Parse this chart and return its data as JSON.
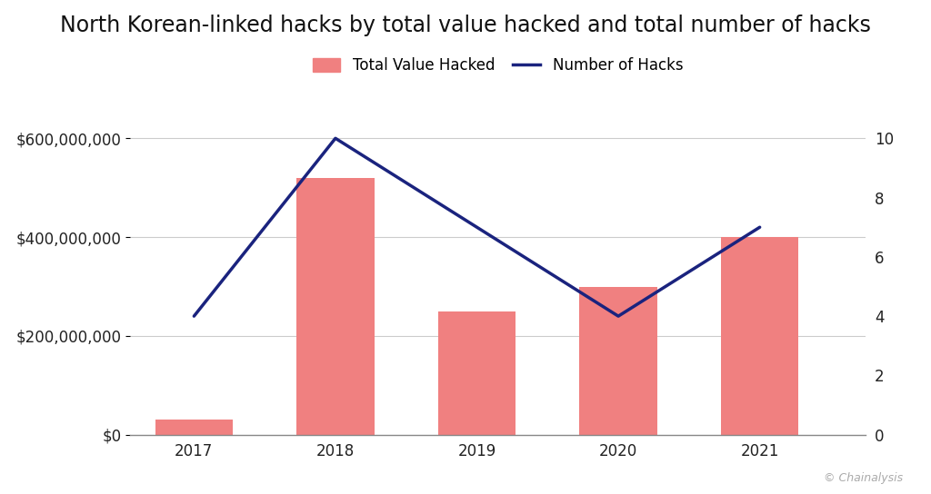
{
  "years": [
    2017,
    2018,
    2019,
    2020,
    2021
  ],
  "total_value": [
    30000000,
    520000000,
    250000000,
    300000000,
    400000000
  ],
  "num_hacks": [
    4,
    10,
    7,
    4,
    7
  ],
  "bar_color": "#F08080",
  "line_color": "#1a237e",
  "title": "North Korean-linked hacks by total value hacked and total number of hacks",
  "legend_bar": "Total Value Hacked",
  "legend_line": "Number of Hacks",
  "ylim_left": [
    0,
    700000000
  ],
  "ylim_right": [
    0,
    11.666
  ],
  "yticks_left": [
    0,
    200000000,
    400000000,
    600000000
  ],
  "ytick_labels_left": [
    "$0",
    "$200,000,000",
    "$400,000,000",
    "$600,000,000"
  ],
  "yticks_right": [
    0,
    2,
    4,
    6,
    8,
    10
  ],
  "background_color": "#ffffff",
  "title_fontsize": 17,
  "legend_fontsize": 12,
  "tick_fontsize": 12,
  "watermark": "© Chainalysis",
  "xlim": [
    2016.55,
    2021.75
  ],
  "bar_width": 0.55
}
